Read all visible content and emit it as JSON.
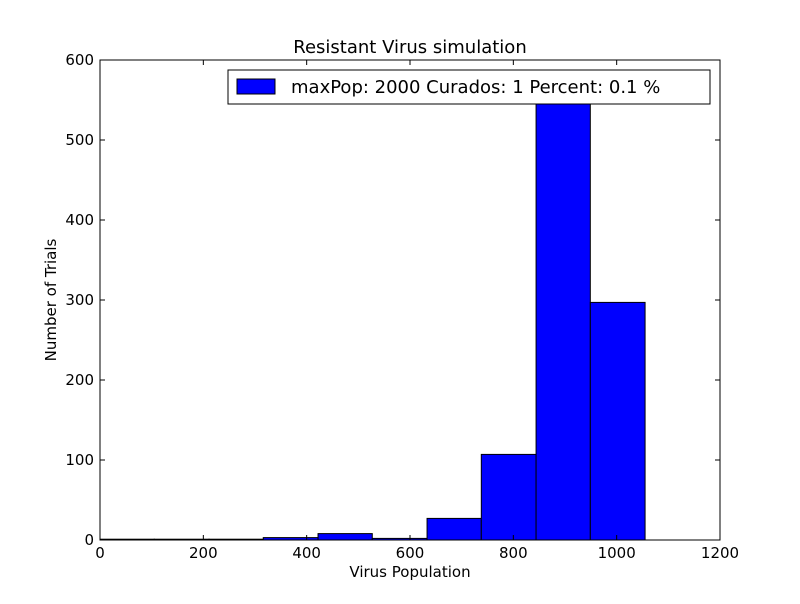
{
  "chart_data": {
    "type": "bar",
    "title": "Resistant Virus simulation",
    "xlabel": "Virus Population",
    "ylabel": "Number of Trials",
    "xlim": [
      0,
      1200
    ],
    "ylim": [
      0,
      600
    ],
    "xticks": [
      0,
      200,
      400,
      600,
      800,
      1000,
      1200
    ],
    "yticks": [
      0,
      100,
      200,
      300,
      400,
      500,
      600
    ],
    "grid": false,
    "legend_position": "top-right",
    "bar_color": "#0000ff",
    "series": [
      {
        "name": "maxPop: 2000 Curados: 1 Percent: 0.1 %",
        "bins": [
          {
            "x0": 0,
            "x1": 105,
            "value": 1
          },
          {
            "x0": 105,
            "x1": 211,
            "value": 1
          },
          {
            "x0": 211,
            "x1": 316,
            "value": 1
          },
          {
            "x0": 316,
            "x1": 422,
            "value": 3
          },
          {
            "x0": 422,
            "x1": 527,
            "value": 8
          },
          {
            "x0": 527,
            "x1": 633,
            "value": 2
          },
          {
            "x0": 633,
            "x1": 738,
            "value": 27
          },
          {
            "x0": 738,
            "x1": 844,
            "value": 107
          },
          {
            "x0": 844,
            "x1": 949,
            "value": 545
          },
          {
            "x0": 949,
            "x1": 1055,
            "value": 297
          }
        ]
      }
    ]
  }
}
